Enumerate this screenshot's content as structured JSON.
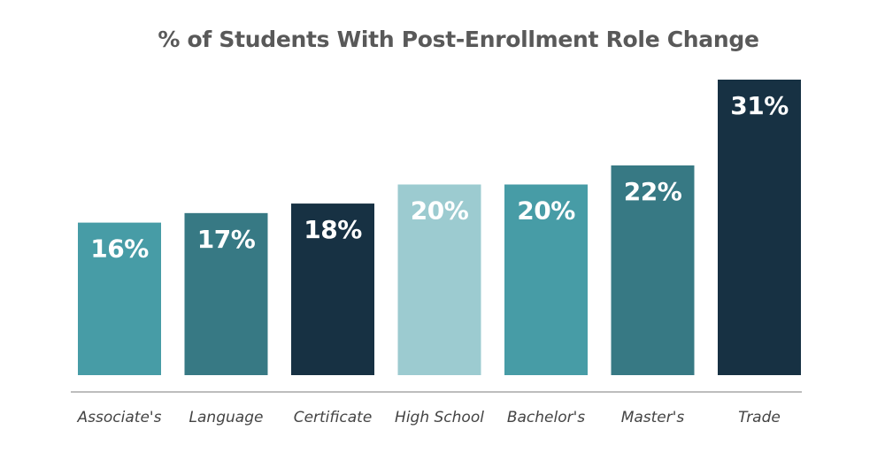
{
  "chart_data": {
    "type": "bar",
    "title": "% of Students With Post-Enrollment Role Change",
    "categories": [
      "Associate's",
      "Language",
      "Certificate",
      "High School",
      "Bachelor's",
      "Master's",
      "Trade"
    ],
    "values": [
      16,
      17,
      18,
      20,
      20,
      22,
      31
    ],
    "value_labels": [
      "16%",
      "17%",
      "18%",
      "20%",
      "20%",
      "22%",
      "31%"
    ],
    "bar_colors": [
      "#479ca6",
      "#377984",
      "#173143",
      "#9ccbd0",
      "#479ca6",
      "#377984",
      "#173143"
    ],
    "ylim": [
      0,
      31
    ],
    "xlabel": "",
    "ylabel": "",
    "grid": false,
    "legend": "none",
    "axis_color": "#bdbdbd"
  }
}
